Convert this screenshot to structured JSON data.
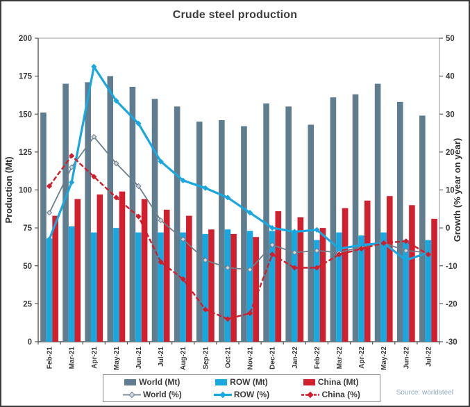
{
  "title": "Crude steel production",
  "source": "Source: worldsteel",
  "colors": {
    "world_bar": "#5f7d8e",
    "row_bar": "#19a7e0",
    "china_bar": "#d11f2d",
    "world_line": "#6d7f8b",
    "row_line": "#19a7e0",
    "china_line": "#cf1f2d",
    "world_marker_fill": "#cfd8dc",
    "axis_text": "#3a3a3a",
    "frame_border": "#9a9a9a",
    "source_text": "#8fa9bd"
  },
  "left_axis": {
    "label": "Production (Mt)",
    "min": 0,
    "max": 200,
    "tick_step": 25
  },
  "right_axis": {
    "label": "Growth (% year on year)",
    "min": -30,
    "max": 50,
    "tick_step": 10
  },
  "legend": {
    "items": [
      {
        "label": "World (Mt)",
        "swatch": "bar",
        "series": "world"
      },
      {
        "label": "ROW (Mt)",
        "swatch": "bar",
        "series": "row"
      },
      {
        "label": "China (Mt)",
        "swatch": "bar",
        "series": "china"
      },
      {
        "label": "World (%)",
        "swatch": "line",
        "series": "world"
      },
      {
        "label": "ROW (%)",
        "swatch": "line",
        "series": "row"
      },
      {
        "label": "China (%)",
        "swatch": "line",
        "series": "china"
      }
    ]
  },
  "chart_data": {
    "type": "bar",
    "subtype": "grouped-bar-plus-line-combo",
    "title": "Crude steel production",
    "categories": [
      "Feb-21",
      "Mar-21",
      "Apr-21",
      "May-21",
      "Jun-21",
      "Jul-21",
      "Aug-21",
      "Sep-21",
      "Oct-21",
      "Nov-21",
      "Dec-21",
      "Jan-22",
      "Feb-22",
      "Mar-22",
      "Apr-22",
      "May-22",
      "Jun-22",
      "Jul-22"
    ],
    "series": [
      {
        "name": "World (Mt)",
        "type": "bar",
        "axis": "left",
        "color": "#5f7d8e",
        "values": [
          151,
          170,
          171,
          175,
          168,
          160,
          155,
          145,
          146,
          142,
          157,
          155,
          143,
          161,
          163,
          170,
          158,
          149
        ]
      },
      {
        "name": "ROW (Mt)",
        "type": "bar",
        "axis": "left",
        "color": "#19a7e0",
        "values": [
          68,
          76,
          72,
          75,
          72,
          72,
          72,
          71,
          74,
          73,
          73,
          73,
          67,
          72,
          70,
          72,
          67,
          67
        ]
      },
      {
        "name": "China (Mt)",
        "type": "bar",
        "axis": "left",
        "color": "#d11f2d",
        "values": [
          83,
          94,
          97,
          99,
          94,
          87,
          83,
          74,
          71,
          69,
          86,
          82,
          75,
          88,
          93,
          96,
          90,
          81
        ]
      },
      {
        "name": "World (%)",
        "type": "line",
        "axis": "right",
        "color": "#6d7f8b",
        "dash": "none",
        "width": 1.8,
        "values": [
          4,
          16,
          24,
          17,
          11,
          2,
          -3,
          -8.5,
          -10.5,
          -11,
          -4.5,
          -6.5,
          -6,
          -6.5,
          -5,
          -4,
          -6,
          -6.5
        ]
      },
      {
        "name": "ROW (%)",
        "type": "line",
        "axis": "right",
        "color": "#19a7e0",
        "dash": "none",
        "width": 3.2,
        "values": [
          -3,
          12,
          42.5,
          33.5,
          27.5,
          17.5,
          12.5,
          10.5,
          8,
          4,
          0,
          -1,
          -0.5,
          -5.5,
          -4.5,
          -4,
          -8.5,
          -6.5
        ]
      },
      {
        "name": "China (%)",
        "type": "line",
        "axis": "right",
        "color": "#cf1f2d",
        "dash": "7 3",
        "width": 2.4,
        "values": [
          11,
          19,
          13.5,
          8,
          3,
          -9,
          -13.5,
          -21.5,
          -24,
          -22.5,
          -7,
          -10.5,
          -10.5,
          -7,
          -5.5,
          -4,
          -3.5,
          -7
        ]
      }
    ],
    "xlabel": "",
    "ylabel_left": "Production (Mt)",
    "ylabel_right": "Growth (% year on year)",
    "ylim_left": [
      0,
      200
    ],
    "ylim_right": [
      -30,
      50
    ],
    "left_ticks": [
      0,
      25,
      50,
      75,
      100,
      125,
      150,
      175,
      200
    ],
    "right_ticks": [
      -30,
      -20,
      -10,
      0,
      10,
      20,
      30,
      40,
      50
    ],
    "grid": false,
    "legend_position": "bottom",
    "source": "Source: worldsteel"
  }
}
